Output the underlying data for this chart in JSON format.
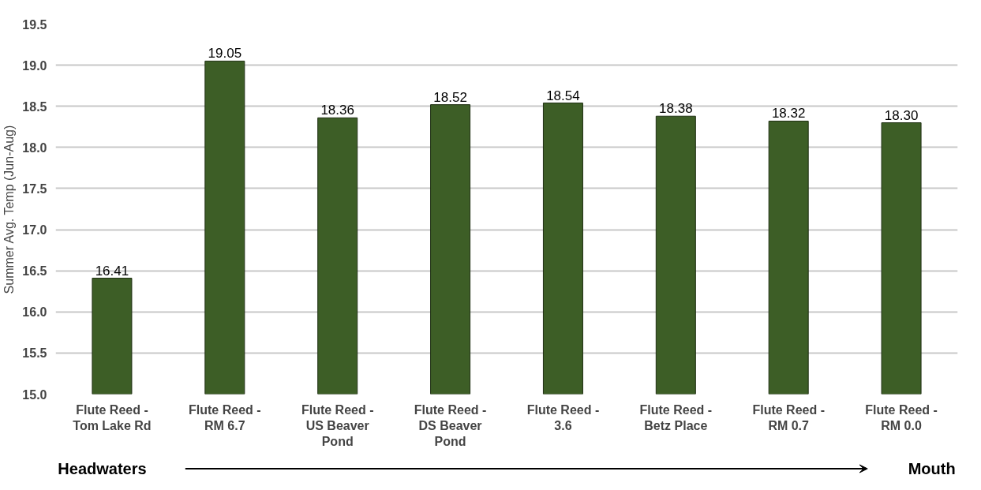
{
  "chart_data": {
    "type": "bar",
    "ylabel": "Summer Avg. Temp (Jun-Aug)",
    "categories": [
      "Flute Reed - Tom Lake Rd",
      "Flute Reed - RM 6.7",
      "Flute Reed - US Beaver Pond",
      "Flute Reed - DS Beaver Pond",
      "Flute Reed - 3.6",
      "Flute Reed - Betz Place",
      "Flute Reed - RM 0.7",
      "Flute Reed - RM 0.0"
    ],
    "values": [
      16.41,
      19.05,
      18.36,
      18.52,
      18.54,
      18.38,
      18.32,
      18.3
    ],
    "color": "#3d5e26",
    "value_labels": [
      "16.41",
      "19.05",
      "18.36",
      "18.52",
      "18.54",
      "18.38",
      "18.32",
      "18.30"
    ],
    "ylim": [
      15,
      19.5
    ],
    "yticks": [
      {
        "value": 15,
        "label": "15.0"
      },
      15.5,
      {
        "value": 16,
        "label": "16.0"
      },
      16.5,
      {
        "value": 17,
        "label": "17.0"
      },
      17.5,
      {
        "value": 18,
        "label": "18.0"
      },
      18.5,
      {
        "value": 19,
        "label": "19.0"
      },
      19.5
    ],
    "grid": "y",
    "annotations": [
      "Headwaters",
      "Mouth"
    ]
  }
}
